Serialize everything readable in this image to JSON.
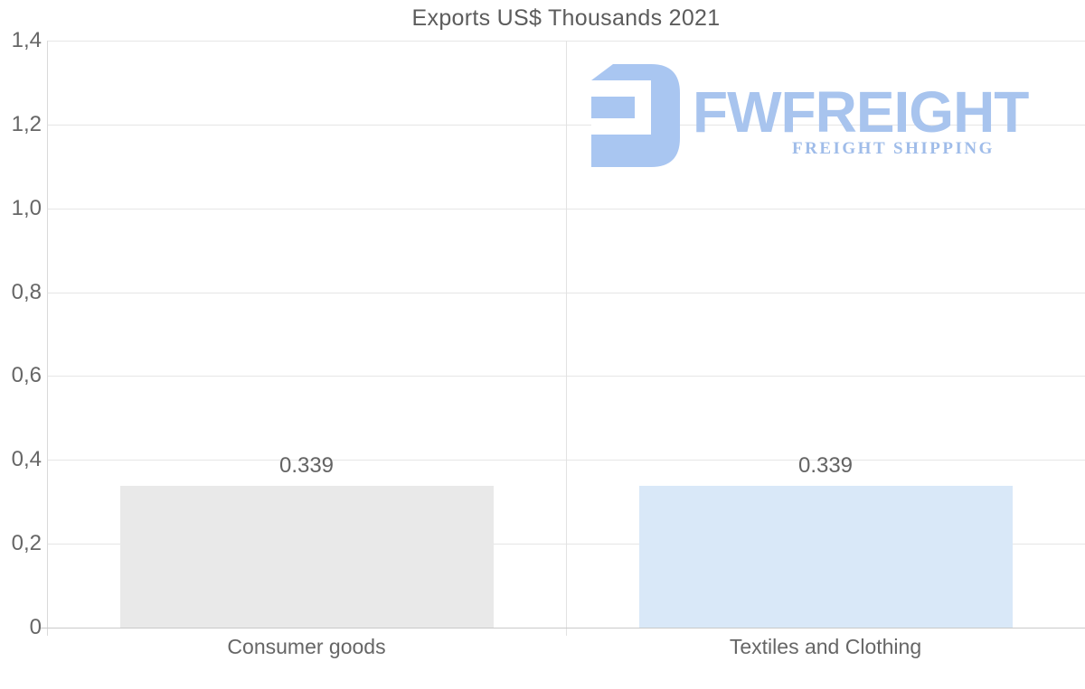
{
  "title": "Exports US$ Thousands 2021",
  "watermark": {
    "brand": "FWFREIGHT",
    "tagline": "FREIGHT SHIPPING",
    "brand_color": "#a8c4ee",
    "icon_color": "#a9c6f1",
    "tagline_color": "#9fbce9"
  },
  "chart_data": {
    "type": "bar",
    "title": "Exports US$ Thousands 2021",
    "categories": [
      "Consumer goods",
      "Textiles and Clothing"
    ],
    "values": [
      0.339,
      0.339
    ],
    "bar_labels": [
      "0.339",
      "0.339"
    ],
    "bar_colors": [
      "#e9e9e9",
      "#d9e8f8"
    ],
    "ylim": [
      0,
      1.4
    ],
    "y_ticks": [
      0,
      0.2,
      0.4,
      0.6,
      0.8,
      1.0,
      1.2,
      1.4
    ],
    "y_tick_labels": [
      "0",
      "0,2",
      "0,4",
      "0,6",
      "0,8",
      "1,0",
      "1,2",
      "1,4"
    ],
    "xlabel": "",
    "ylabel": "",
    "grid": true,
    "legend": false
  }
}
